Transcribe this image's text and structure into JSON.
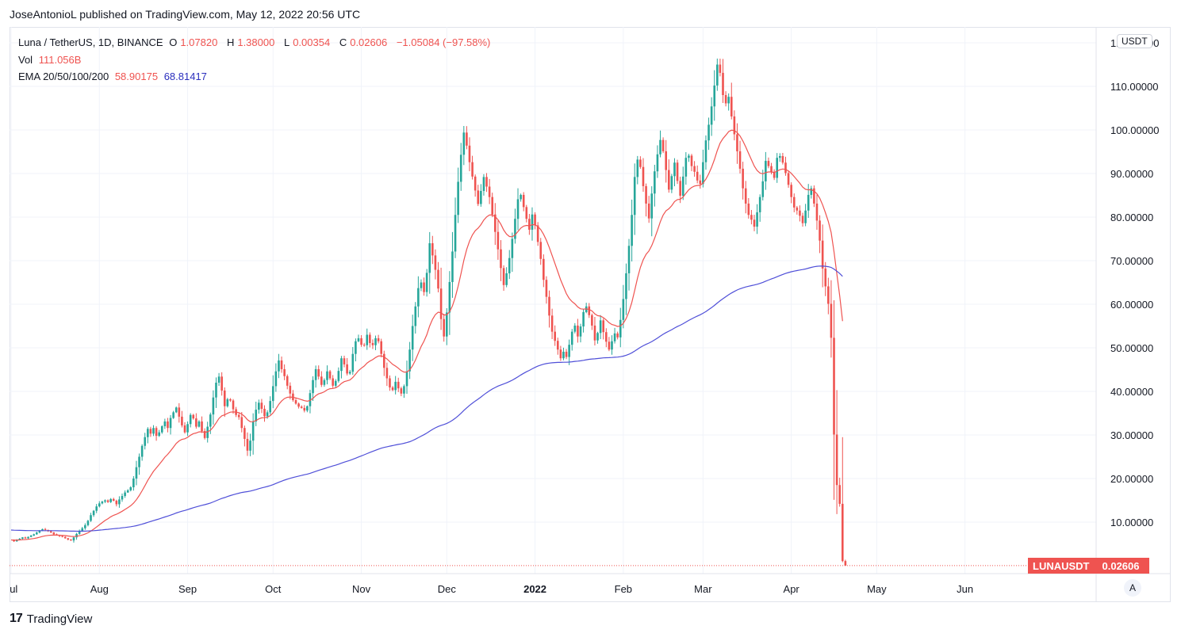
{
  "publish_line": "JoseAntonioL published on TradingView.com, May 12, 2022 20:56 UTC",
  "legend": {
    "title": "Luna / TetherUS, 1D, BINANCE",
    "ohlc": [
      {
        "label": "O",
        "value": "1.07820"
      },
      {
        "label": "H",
        "value": "1.38000"
      },
      {
        "label": "L",
        "value": "0.00354"
      },
      {
        "label": "C",
        "value": "0.02606"
      }
    ],
    "change": "−1.05084 (−97.58%)",
    "vol_label": "Vol",
    "vol_value": "111.056B",
    "ema_label": "EMA 20/50/100/200",
    "ema_fast": "58.90175",
    "ema_slow": "68.81417"
  },
  "currency_badge": "USDT",
  "last_price_badge": {
    "symbol": "LUNAUSDT",
    "value": "0.02606"
  },
  "auto_button": "A",
  "brand": {
    "logo": "17",
    "name": "TradingView"
  },
  "colors": {
    "up": "#26a69a",
    "down": "#ef5350",
    "ema_fast": "#ef5350",
    "ema_slow": "#4f4fd8",
    "grid": "#f0f3fa",
    "axis_text": "#131722"
  },
  "chart_data": {
    "type": "candlestick",
    "symbol": "LUNAUSDT",
    "interval": "1D",
    "ylim": [
      -2,
      122
    ],
    "y_ticks": [
      "120.00000",
      "110.00000",
      "100.00000",
      "90.00000",
      "80.00000",
      "70.00000",
      "60.00000",
      "50.00000",
      "40.00000",
      "30.00000",
      "20.00000",
      "10.00000"
    ],
    "y_tick_values": [
      120,
      110,
      100,
      90,
      80,
      70,
      60,
      50,
      40,
      30,
      20,
      10
    ],
    "x_ticks": [
      {
        "label": "Jul",
        "day": 0,
        "bold": false
      },
      {
        "label": "Aug",
        "day": 31,
        "bold": false
      },
      {
        "label": "Sep",
        "day": 62,
        "bold": false
      },
      {
        "label": "Oct",
        "day": 92,
        "bold": false
      },
      {
        "label": "Nov",
        "day": 123,
        "bold": false
      },
      {
        "label": "Dec",
        "day": 153,
        "bold": false
      },
      {
        "label": "2022",
        "day": 184,
        "bold": true
      },
      {
        "label": "Feb",
        "day": 215,
        "bold": false
      },
      {
        "label": "Mar",
        "day": 243,
        "bold": false
      },
      {
        "label": "Apr",
        "day": 274,
        "bold": false
      },
      {
        "label": "May",
        "day": 304,
        "bold": false
      },
      {
        "label": "Jun",
        "day": 335,
        "bold": false
      }
    ],
    "first_day": "2021-07-01",
    "last_price": 0.02606,
    "closes": [
      5.9,
      5.6,
      6.0,
      6.2,
      6.5,
      6.3,
      6.6,
      6.9,
      7.2,
      7.6,
      8.0,
      8.4,
      8.2,
      7.9,
      7.6,
      7.2,
      7.0,
      6.8,
      6.6,
      6.3,
      6.0,
      5.8,
      6.5,
      7.3,
      8.0,
      8.6,
      9.3,
      10.3,
      11.6,
      12.6,
      13.6,
      14.3,
      14.7,
      15.0,
      14.6,
      15.3,
      14.9,
      14.1,
      15.2,
      16.0,
      16.8,
      17.3,
      18.0,
      20.0,
      22.6,
      25.0,
      27.5,
      29.5,
      31.4,
      30.3,
      31.6,
      29.8,
      30.6,
      32.0,
      33.1,
      31.6,
      33.9,
      35.2,
      36.3,
      34.2,
      32.2,
      30.6,
      32.5,
      34.6,
      33.8,
      31.9,
      33.1,
      30.9,
      29.3,
      31.9,
      34.7,
      38.6,
      42.0,
      43.4,
      40.2,
      36.6,
      38.2,
      37.9,
      35.9,
      34.6,
      34.1,
      31.6,
      29.1,
      26.4,
      28.7,
      33.1,
      35.8,
      37.4,
      36.0,
      34.3,
      35.2,
      37.8,
      41.2,
      44.6,
      47.1,
      45.1,
      43.5,
      41.3,
      39.5,
      38.0,
      37.2,
      36.5,
      36.2,
      35.6,
      36.6,
      39.6,
      42.6,
      45.1,
      43.4,
      41.5,
      42.6,
      44.6,
      43.0,
      41.3,
      42.4,
      44.7,
      47.6,
      46.2,
      44.1,
      44.5,
      48.6,
      51.5,
      52.2,
      50.7,
      50.6,
      53.0,
      51.1,
      50.6,
      52.2,
      51.5,
      48.6,
      45.4,
      43.0,
      40.9,
      40.3,
      42.2,
      40.7,
      39.5,
      41.2,
      44.6,
      49.6,
      55.0,
      59.5,
      63.7,
      65.0,
      62.8,
      67.2,
      74.0,
      71.2,
      67.9,
      63.6,
      56.6,
      52.6,
      58.1,
      65.1,
      72.1,
      80.5,
      88.1,
      94.3,
      99.4,
      96.4,
      92.6,
      89.3,
      86.1,
      83.0,
      86.0,
      89.2,
      87.0,
      84.6,
      80.6,
      76.6,
      72.6,
      68.3,
      64.4,
      67.1,
      70.6,
      75.0,
      79.6,
      84.1,
      85.1,
      82.3,
      79.6,
      77.1,
      80.6,
      78.1,
      74.3,
      70.4,
      65.6,
      61.7,
      57.4,
      53.7,
      51.6,
      49.6,
      47.6,
      49.1,
      47.9,
      50.7,
      53.7,
      55.1,
      52.6,
      54.9,
      58.2,
      59.5,
      57.5,
      55.1,
      51.7,
      53.4,
      56.3,
      53.6,
      51.4,
      49.6,
      51.5,
      53.3,
      52.4,
      56.4,
      61.2,
      67.1,
      73.4,
      80.5,
      89.2,
      93.2,
      91.5,
      87.1,
      83.1,
      79.7,
      85.4,
      90.5,
      94.4,
      97.7,
      95.1,
      90.8,
      86.3,
      89.4,
      92.5,
      88.3,
      84.9,
      89.3,
      93.6,
      94.1,
      91.7,
      90.4,
      88.4,
      87.6,
      92.6,
      97.6,
      101.2,
      105.4,
      110.2,
      115.0,
      113.1,
      108.0,
      106.1,
      107.6,
      103.1,
      99.0,
      95.1,
      91.1,
      86.6,
      83.1,
      80.5,
      79.4,
      77.8,
      81.1,
      84.6,
      88.2,
      92.9,
      91.7,
      90.4,
      89.0,
      93.6,
      94.0,
      92.5,
      90.1,
      87.4,
      84.6,
      82.2,
      81.5,
      80.3,
      78.6,
      81.5,
      85.1,
      86.6,
      83.1,
      79.2,
      74.6,
      68.2,
      64.1,
      60.1,
      52.3,
      30.1,
      18.5,
      14.2,
      1.07,
      0.02606
    ]
  }
}
